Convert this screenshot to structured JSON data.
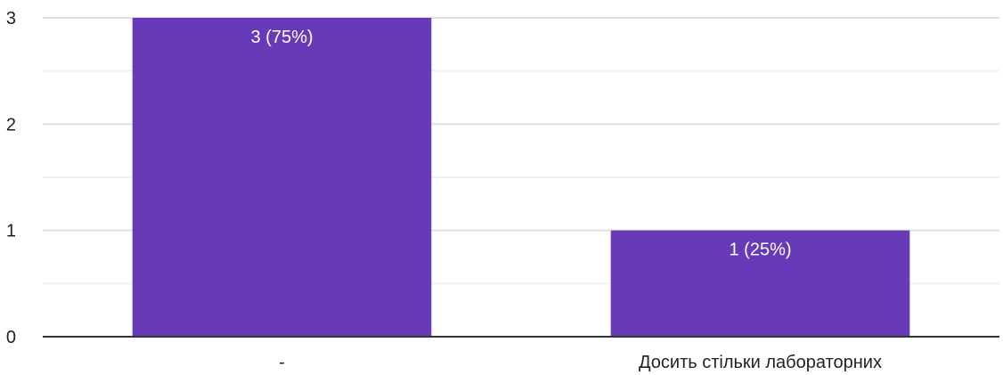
{
  "chart_data": {
    "type": "bar",
    "title": "",
    "xlabel": "",
    "ylabel": "",
    "categories": [
      "-",
      "Досить стільки лабораторних"
    ],
    "values": [
      3,
      1
    ],
    "data_labels": [
      "3 (75%)",
      "1 (25%)"
    ],
    "ylim": [
      0,
      3
    ],
    "y_ticks": [
      "0",
      "1",
      "2",
      "3"
    ],
    "grid": true,
    "legend": "none",
    "colors": {
      "bar": "#673ab7",
      "major_grid": "#e0e0e0",
      "minor_grid": "#f1f1f1",
      "axis": "#333333"
    }
  }
}
